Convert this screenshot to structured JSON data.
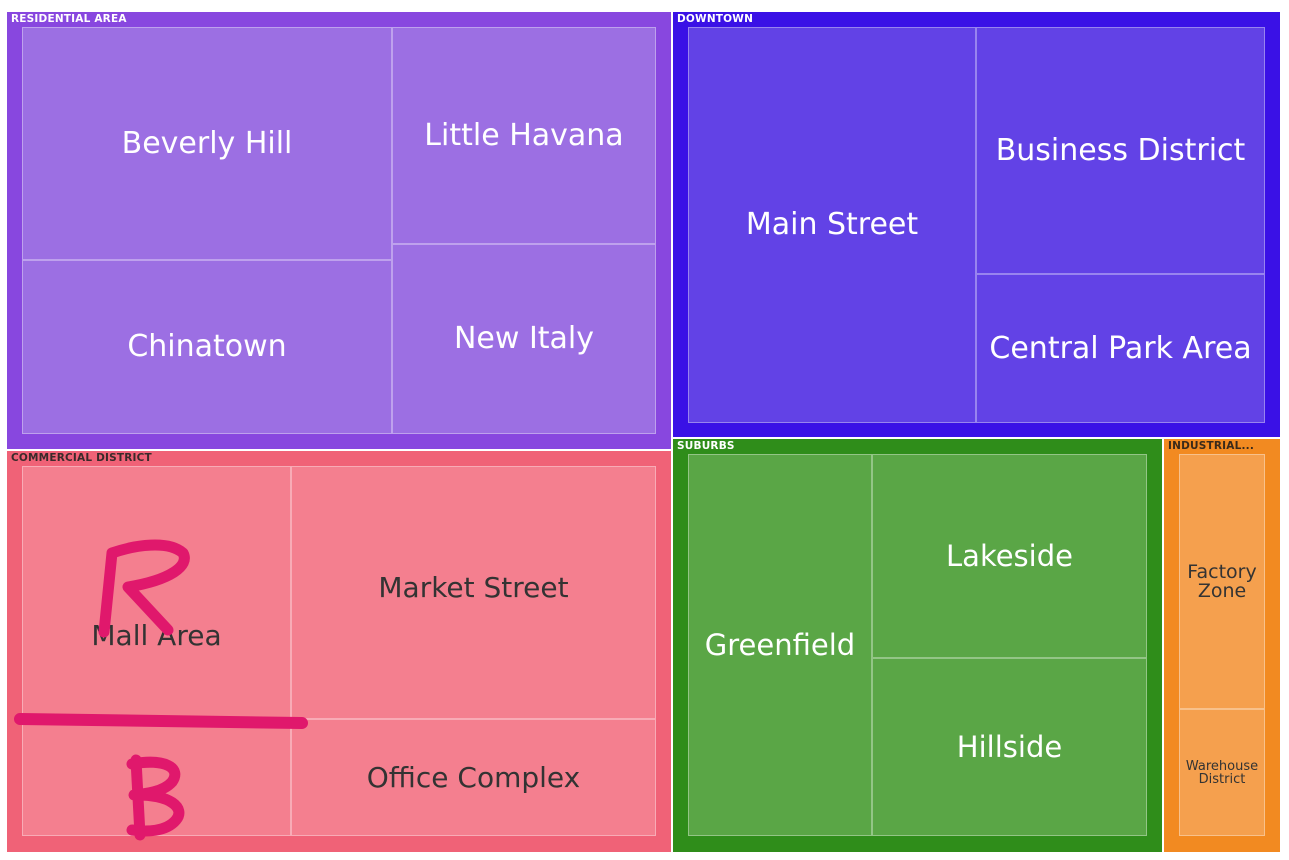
{
  "chart_data": {
    "type": "treemap",
    "groups": [
      {
        "name": "RESIDENTIAL AREA",
        "frame_color": "#8847df",
        "tile_color": "#9c6fe3",
        "label_color": "#ffffff",
        "text_color": "#ffffff",
        "children": [
          {
            "name": "Beverly Hill"
          },
          {
            "name": "Little Havana"
          },
          {
            "name": "Chinatown"
          },
          {
            "name": "New Italy"
          }
        ]
      },
      {
        "name": "DOWNTOWN",
        "frame_color": "#3a11e6",
        "tile_color": "#6242e6",
        "label_color": "#ffffff",
        "text_color": "#ffffff",
        "children": [
          {
            "name": "Main Street"
          },
          {
            "name": "Business District"
          },
          {
            "name": "Central Park Area"
          }
        ]
      },
      {
        "name": "COMMERCIAL DISTRICT",
        "frame_color": "#f06277",
        "tile_color": "#f47f8f",
        "label_color": "#3a2a2a",
        "text_color": "#333333",
        "children": [
          {
            "name": "Mall Area"
          },
          {
            "name": "Market Street"
          },
          {
            "name": "Office Complex"
          },
          {
            "name": ""
          }
        ]
      },
      {
        "name": "SUBURBS",
        "frame_color": "#2f8d1a",
        "tile_color": "#5aa646",
        "label_color": "#ffffff",
        "text_color": "#ffffff",
        "children": [
          {
            "name": "Greenfield"
          },
          {
            "name": "Lakeside"
          },
          {
            "name": "Hillside"
          }
        ]
      },
      {
        "name": "INDUSTRIAL...",
        "frame_color": "#f28a21",
        "tile_color": "#f5a04e",
        "label_color": "#3a2a1a",
        "text_color": "#333333",
        "children": [
          {
            "name": "Factory Zone"
          },
          {
            "name": "Warehouse District"
          }
        ]
      }
    ]
  },
  "annotations": {
    "color": "#e0186c",
    "marks": [
      "A",
      "B"
    ]
  }
}
